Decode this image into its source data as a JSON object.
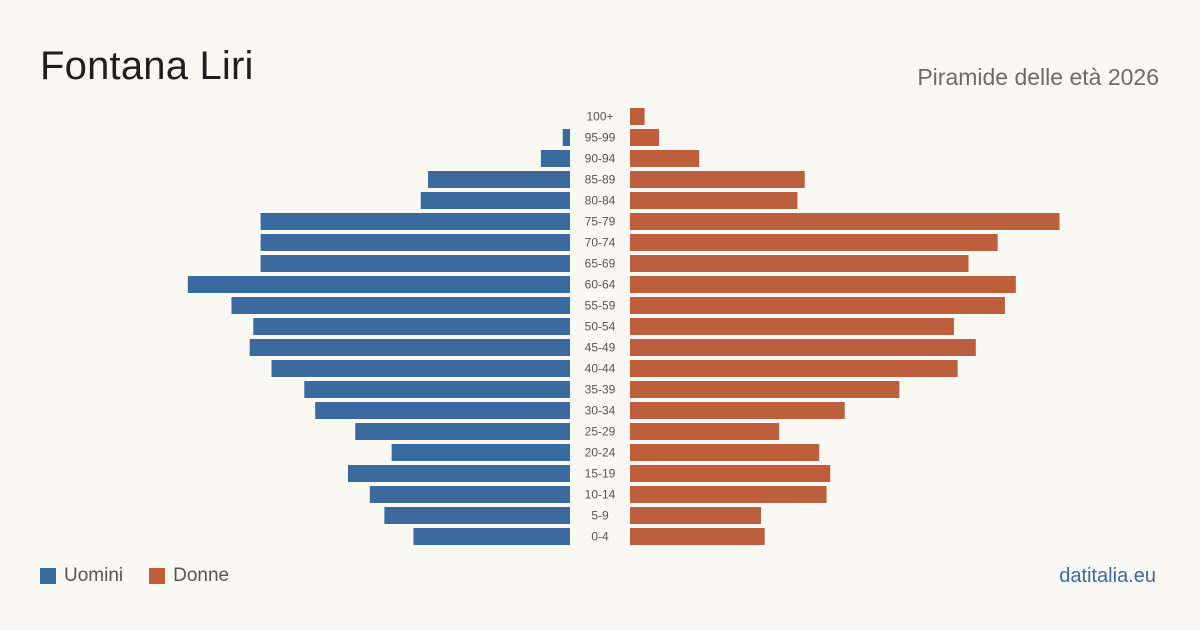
{
  "header": {
    "title": "Fontana Liri",
    "subtitle": "Piramide delle età 2026"
  },
  "legend": {
    "male_label": "Uomini",
    "female_label": "Donne"
  },
  "footer": {
    "source": "datitalia.eu"
  },
  "colors": {
    "male": "#3b6b9e",
    "female": "#bd5e3c"
  },
  "chart_data": {
    "type": "bar",
    "orientation": "horizontal-pyramid",
    "categories": [
      "100+",
      "95-99",
      "90-94",
      "85-89",
      "80-84",
      "75-79",
      "70-74",
      "65-69",
      "60-64",
      "55-59",
      "50-54",
      "45-49",
      "40-44",
      "35-39",
      "30-34",
      "25-29",
      "20-24",
      "15-19",
      "10-14",
      "5-9",
      "0-4"
    ],
    "series": [
      {
        "name": "Uomini",
        "values": [
          0,
          2,
          8,
          39,
          41,
          85,
          85,
          85,
          105,
          93,
          87,
          88,
          82,
          73,
          70,
          59,
          49,
          61,
          55,
          51,
          43
        ]
      },
      {
        "name": "Donne",
        "values": [
          4,
          8,
          19,
          48,
          46,
          118,
          101,
          93,
          106,
          103,
          89,
          95,
          90,
          74,
          59,
          41,
          52,
          55,
          54,
          36,
          37
        ]
      }
    ],
    "grid": false,
    "legend_position": "bottom-left"
  }
}
